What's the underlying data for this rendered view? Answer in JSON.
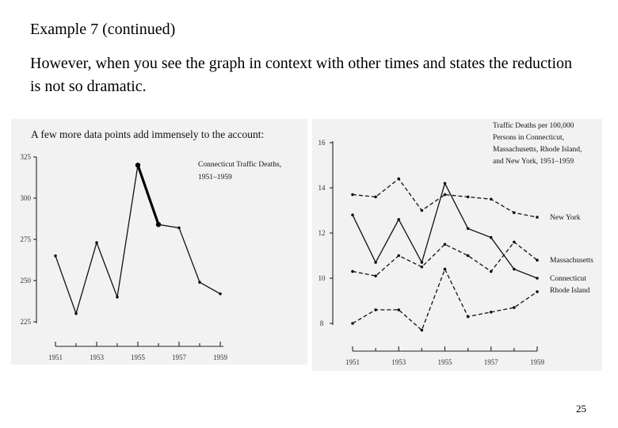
{
  "slide": {
    "heading": "Example 7 (continued)",
    "body": "However, when you see the graph in context with other times and states the reduction is not so dramatic.",
    "page_number": "25"
  },
  "chart_data": [
    {
      "type": "line",
      "title": "A few more data points add immensely to the account:",
      "annotation_lines": [
        "Connecticut Traffic Deaths,",
        "1951–1959"
      ],
      "x": [
        1951,
        1952,
        1953,
        1954,
        1955,
        1956,
        1957,
        1958,
        1959
      ],
      "x_tick_labels": [
        "1951",
        "1953",
        "1955",
        "1957",
        "1959"
      ],
      "y_tick_labels": [
        "225",
        "250",
        "275",
        "300",
        "325"
      ],
      "ylim": [
        225,
        325
      ],
      "series": [
        {
          "values": [
            265,
            230,
            273,
            240,
            320,
            284,
            282,
            249,
            242
          ]
        }
      ],
      "highlight_points": [
        1955,
        1956
      ]
    },
    {
      "type": "line",
      "title_lines": [
        "Traffic Deaths per 100,000",
        "Persons in Connecticut,",
        "Massachusetts, Rhode Island,",
        "and New York, 1951–1959"
      ],
      "x": [
        1951,
        1952,
        1953,
        1954,
        1955,
        1956,
        1957,
        1958,
        1959
      ],
      "x_tick_labels": [
        "1951",
        "1953",
        "1955",
        "1957",
        "1959"
      ],
      "y_tick_labels": [
        "8",
        "10",
        "12",
        "14",
        "16"
      ],
      "ylim": [
        8,
        16
      ],
      "series": [
        {
          "name": "New York",
          "style": "dashed",
          "values": [
            13.7,
            13.6,
            14.4,
            13.0,
            13.7,
            13.6,
            13.5,
            12.9,
            12.7
          ]
        },
        {
          "name": "Massachusetts",
          "style": "dashed",
          "values": [
            10.3,
            10.1,
            11.0,
            10.5,
            11.5,
            11.0,
            10.3,
            11.6,
            10.8
          ]
        },
        {
          "name": "Connecticut",
          "style": "solid",
          "values": [
            12.8,
            10.7,
            12.6,
            10.7,
            14.2,
            12.2,
            11.8,
            10.4,
            10.0
          ]
        },
        {
          "name": "Rhode Island",
          "style": "dashed",
          "values": [
            8.0,
            8.6,
            8.6,
            7.7,
            10.4,
            8.3,
            8.5,
            8.7,
            9.4
          ]
        }
      ]
    }
  ]
}
